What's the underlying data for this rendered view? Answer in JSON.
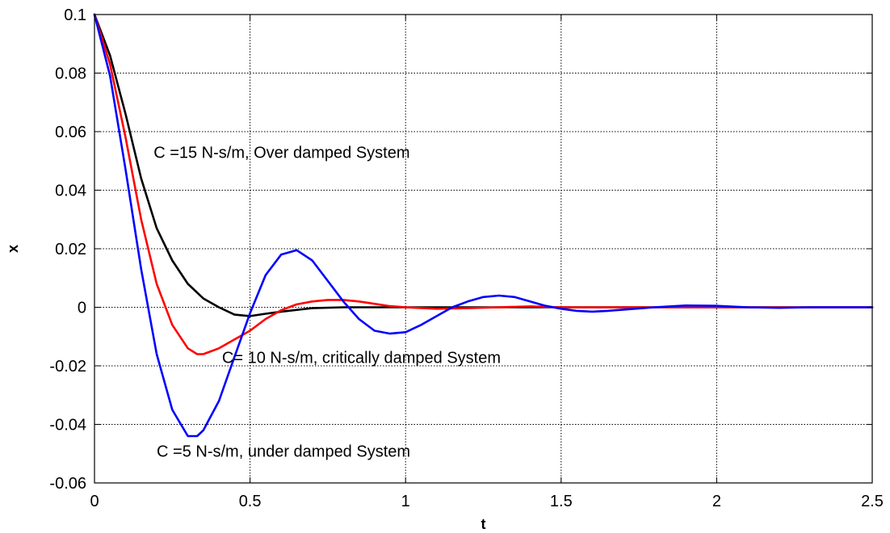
{
  "chart_data": {
    "type": "line",
    "title": "",
    "xlabel": "t",
    "ylabel": "x",
    "xlim": [
      0,
      2.5
    ],
    "ylim": [
      -0.06,
      0.1
    ],
    "xticks": [
      0,
      0.5,
      1,
      1.5,
      2,
      2.5
    ],
    "xtick_labels": [
      "0",
      "0.5",
      "1",
      "1.5",
      "2",
      "2.5"
    ],
    "yticks": [
      -0.06,
      -0.04,
      -0.02,
      0,
      0.02,
      0.04,
      0.06,
      0.08,
      0.1
    ],
    "ytick_labels": [
      "-0.06",
      "-0.04",
      "-0.02",
      "0",
      "0.02",
      "0.04",
      "0.06",
      "0.08",
      "0.1"
    ],
    "grid": true,
    "legend": "none",
    "series": [
      {
        "color": "#000000",
        "x": [
          0,
          0.05,
          0.1,
          0.15,
          0.2,
          0.25,
          0.3,
          0.35,
          0.4,
          0.45,
          0.5,
          0.55,
          0.6,
          0.7,
          0.8,
          1.0,
          1.5,
          2.0,
          2.5
        ],
        "y": [
          0.1,
          0.086,
          0.066,
          0.044,
          0.027,
          0.016,
          0.008,
          0.003,
          0.0,
          -0.0025,
          -0.003,
          -0.0022,
          -0.0015,
          -0.0003,
          0.0,
          0.0,
          0.0,
          0.0,
          0.0
        ]
      },
      {
        "color": "#ff0000",
        "x": [
          0,
          0.05,
          0.1,
          0.15,
          0.2,
          0.25,
          0.3,
          0.33,
          0.35,
          0.4,
          0.45,
          0.5,
          0.55,
          0.6,
          0.65,
          0.7,
          0.75,
          0.8,
          0.85,
          0.9,
          0.95,
          1.0,
          1.1,
          1.2,
          1.3,
          1.4,
          1.5,
          2.0,
          2.5
        ],
        "y": [
          0.1,
          0.083,
          0.058,
          0.03,
          0.008,
          -0.006,
          -0.014,
          -0.016,
          -0.016,
          -0.014,
          -0.011,
          -0.008,
          -0.004,
          -0.001,
          0.001,
          0.002,
          0.0025,
          0.0025,
          0.002,
          0.0012,
          0.0004,
          0.0,
          -0.0005,
          -0.0003,
          0.0,
          0.0003,
          0.0,
          0.0,
          0.0
        ]
      },
      {
        "color": "#0000ff",
        "x": [
          0,
          0.05,
          0.1,
          0.15,
          0.2,
          0.25,
          0.3,
          0.33,
          0.35,
          0.4,
          0.45,
          0.5,
          0.55,
          0.6,
          0.65,
          0.7,
          0.75,
          0.8,
          0.85,
          0.9,
          0.95,
          1.0,
          1.05,
          1.1,
          1.15,
          1.2,
          1.25,
          1.3,
          1.35,
          1.4,
          1.45,
          1.5,
          1.55,
          1.6,
          1.65,
          1.7,
          1.8,
          1.9,
          2.0,
          2.1,
          2.2,
          2.3,
          2.4,
          2.5
        ],
        "y": [
          0.1,
          0.079,
          0.047,
          0.013,
          -0.016,
          -0.035,
          -0.044,
          -0.044,
          -0.042,
          -0.032,
          -0.017,
          -0.002,
          0.011,
          0.018,
          0.0195,
          0.016,
          0.009,
          0.002,
          -0.004,
          -0.008,
          -0.009,
          -0.0085,
          -0.006,
          -0.003,
          0.0,
          0.002,
          0.0035,
          0.004,
          0.0035,
          0.002,
          0.0005,
          -0.0005,
          -0.0012,
          -0.0015,
          -0.0012,
          -0.0008,
          0.0,
          0.0006,
          0.0005,
          0.0,
          -0.0002,
          0.0,
          0.0,
          0.0
        ]
      }
    ],
    "annotations": [
      {
        "text": "C =15 N-s/m, Over damped System",
        "x": 0.19,
        "y": 0.051
      },
      {
        "text": "C= 10 N-s/m, critically  damped System",
        "x": 0.41,
        "y": -0.019
      },
      {
        "text": "C =5 N-s/m, under damped System",
        "x": 0.2,
        "y": -0.051
      }
    ]
  }
}
